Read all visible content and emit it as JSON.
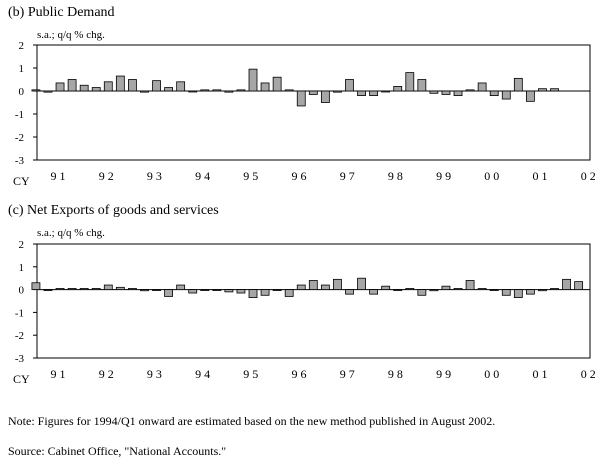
{
  "chart_data": [
    {
      "type": "bar",
      "title": "(b) Public Demand",
      "unit_label": "s.a.; q/q % chg.",
      "xlabel": "CY",
      "ylim": [
        -3,
        2
      ],
      "yticks": [
        "2",
        "1",
        "0",
        "-1",
        "-2",
        "-3"
      ],
      "year_labels": [
        "9 1",
        "9 2",
        "9 3",
        "9 4",
        "9 5",
        "9 6",
        "9 7",
        "9 8",
        "9 9",
        "0 0",
        "0 1",
        "0 2"
      ],
      "bar_color": "#a6a6a6",
      "values": [
        0.05,
        -0.05,
        0.35,
        0.5,
        0.25,
        0.15,
        0.4,
        0.65,
        0.5,
        -0.05,
        0.45,
        0.15,
        0.4,
        0.0,
        0.05,
        0.05,
        -0.05,
        0.05,
        0.95,
        0.35,
        0.6,
        0.05,
        -0.65,
        -0.15,
        -0.5,
        -0.05,
        0.5,
        -0.2,
        -0.2,
        0.0,
        0.2,
        0.8,
        0.5,
        -0.1,
        -0.15,
        -0.2,
        0.05,
        0.35,
        -0.2,
        -0.35,
        0.55,
        -0.45,
        0.1,
        0.1
      ]
    },
    {
      "type": "bar",
      "title": "(c) Net Exports of goods and services",
      "unit_label": "s.a.; q/q % chg.",
      "xlabel": "CY",
      "ylim": [
        -3,
        2
      ],
      "yticks": [
        "2",
        "1",
        "0",
        "-1",
        "-2",
        "-3"
      ],
      "year_labels": [
        "9 1",
        "9 2",
        "9 3",
        "9 4",
        "9 5",
        "9 6",
        "9 7",
        "9 8",
        "9 9",
        "0 0",
        "0 1",
        "0 2"
      ],
      "bar_color": "#a6a6a6",
      "values": [
        0.3,
        0.0,
        0.05,
        0.05,
        0.05,
        0.05,
        0.2,
        0.1,
        0.05,
        -0.05,
        0.0,
        -0.3,
        0.2,
        -0.15,
        0.0,
        0.0,
        -0.1,
        -0.15,
        -0.35,
        -0.25,
        0.0,
        -0.3,
        0.2,
        0.4,
        0.2,
        0.45,
        -0.2,
        0.5,
        -0.2,
        0.15,
        0.0,
        0.05,
        -0.25,
        -0.05,
        0.15,
        0.05,
        0.4,
        0.05,
        0.0,
        -0.25,
        -0.35,
        -0.2,
        -0.05,
        0.05,
        0.45,
        0.35
      ]
    }
  ],
  "notes": {
    "note": "Note: Figures for 1994/Q1 onward are estimated based on the new method published in August 2002.",
    "source": "Source: Cabinet Office, \"National Accounts.\""
  }
}
